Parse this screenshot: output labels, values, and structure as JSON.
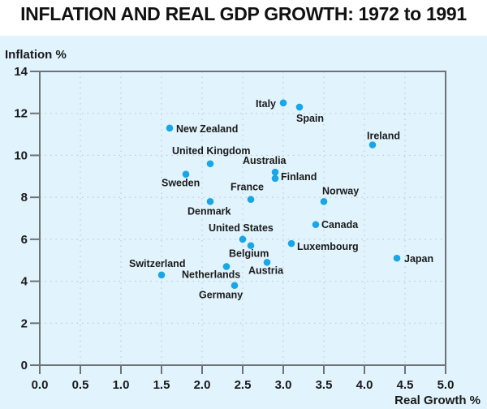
{
  "chart_data": {
    "type": "scatter",
    "title": "INFLATION AND REAL GDP GROWTH: 1972 to 1991",
    "xlabel": "Real Growth %",
    "ylabel": "Inflation %",
    "xlim": [
      0,
      5
    ],
    "ylim": [
      0,
      14
    ],
    "xticks": [
      "0.0",
      "0.5",
      "1.0",
      "1.5",
      "2.0",
      "2.5",
      "3.0",
      "3.5",
      "4.0",
      "4.5",
      "5.0"
    ],
    "yticks": [
      "0",
      "2",
      "4",
      "6",
      "8",
      "10",
      "12",
      "14"
    ],
    "grid": true,
    "colors": {
      "point": "#18a6e8",
      "background": "#e1f3fd",
      "axis": "#6d7378",
      "grid": "#b9c4cb"
    },
    "points": [
      {
        "label": "Italy",
        "x": 3.0,
        "y": 12.5
      },
      {
        "label": "Spain",
        "x": 3.2,
        "y": 12.3
      },
      {
        "label": "Ireland",
        "x": 4.1,
        "y": 10.5
      },
      {
        "label": "New Zealand",
        "x": 1.6,
        "y": 11.3
      },
      {
        "label": "United Kingdom",
        "x": 2.1,
        "y": 9.6
      },
      {
        "label": "Sweden",
        "x": 1.8,
        "y": 9.1
      },
      {
        "label": "Australia",
        "x": 2.9,
        "y": 9.2
      },
      {
        "label": "Finland",
        "x": 2.9,
        "y": 8.9
      },
      {
        "label": "France",
        "x": 2.6,
        "y": 7.9
      },
      {
        "label": "Denmark",
        "x": 2.1,
        "y": 7.8
      },
      {
        "label": "Norway",
        "x": 3.5,
        "y": 7.8
      },
      {
        "label": "Canada",
        "x": 3.4,
        "y": 6.7
      },
      {
        "label": "Luxembourg",
        "x": 3.1,
        "y": 5.8
      },
      {
        "label": "Japan",
        "x": 4.4,
        "y": 5.1
      },
      {
        "label": "United States",
        "x": 2.5,
        "y": 6.0
      },
      {
        "label": "Belgium",
        "x": 2.6,
        "y": 5.7
      },
      {
        "label": "Switzerland",
        "x": 1.5,
        "y": 4.3
      },
      {
        "label": "Netherlands",
        "x": 2.3,
        "y": 4.7
      },
      {
        "label": "Austria",
        "x": 2.8,
        "y": 4.9
      },
      {
        "label": "Germany",
        "x": 2.4,
        "y": 3.8
      }
    ]
  }
}
